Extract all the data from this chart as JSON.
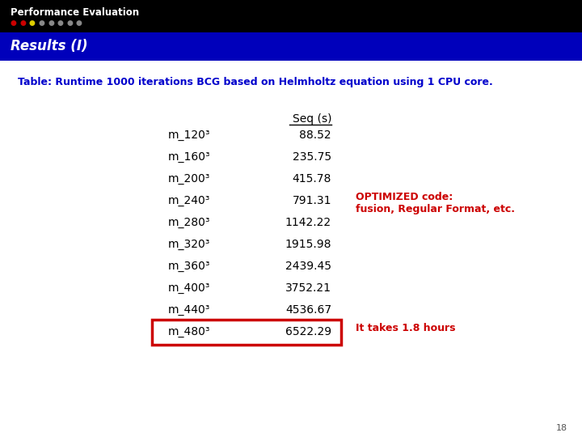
{
  "title_bar_text": "Performance Evaluation",
  "title_bar_bg": "#000000",
  "title_bar_text_color": "#ffffff",
  "subtitle_bar_text": "Results (I)",
  "subtitle_bar_bg": "#0000bb",
  "subtitle_bar_text_color": "#ffffff",
  "table_title": "Table: Runtime 1000 iterations BCG based on Helmholtz equation using 1 CPU core.",
  "table_title_color": "#0000cc",
  "col_header": "Seq (s)",
  "rows": [
    [
      "m_120³",
      "88.52"
    ],
    [
      "m_160³",
      "235.75"
    ],
    [
      "m_200³",
      "415.78"
    ],
    [
      "m_240³",
      "791.31"
    ],
    [
      "m_280³",
      "1142.22"
    ],
    [
      "m_320³",
      "1915.98"
    ],
    [
      "m_360³",
      "2439.45"
    ],
    [
      "m_400³",
      "3752.21"
    ],
    [
      "m_440³",
      "4536.67"
    ],
    [
      "m_480³",
      "6522.29"
    ]
  ],
  "highlighted_row_idx": 9,
  "highlight_box_color": "#cc0000",
  "annotation1_text": "OPTIMIZED code:\nfusion, Regular Format, etc.",
  "annotation1_color": "#cc0000",
  "annotation1_row": 3,
  "annotation2_text": "It takes 1.8 hours",
  "annotation2_color": "#cc0000",
  "annotation2_row": 9,
  "dot_colors_filled": [
    "#cc0000",
    "#cc0000",
    "#ddcc00",
    "#888888",
    "#888888",
    "#888888",
    "#888888",
    "#888888"
  ],
  "page_number": "18",
  "bg_color": "#ffffff",
  "text_color": "#000000"
}
